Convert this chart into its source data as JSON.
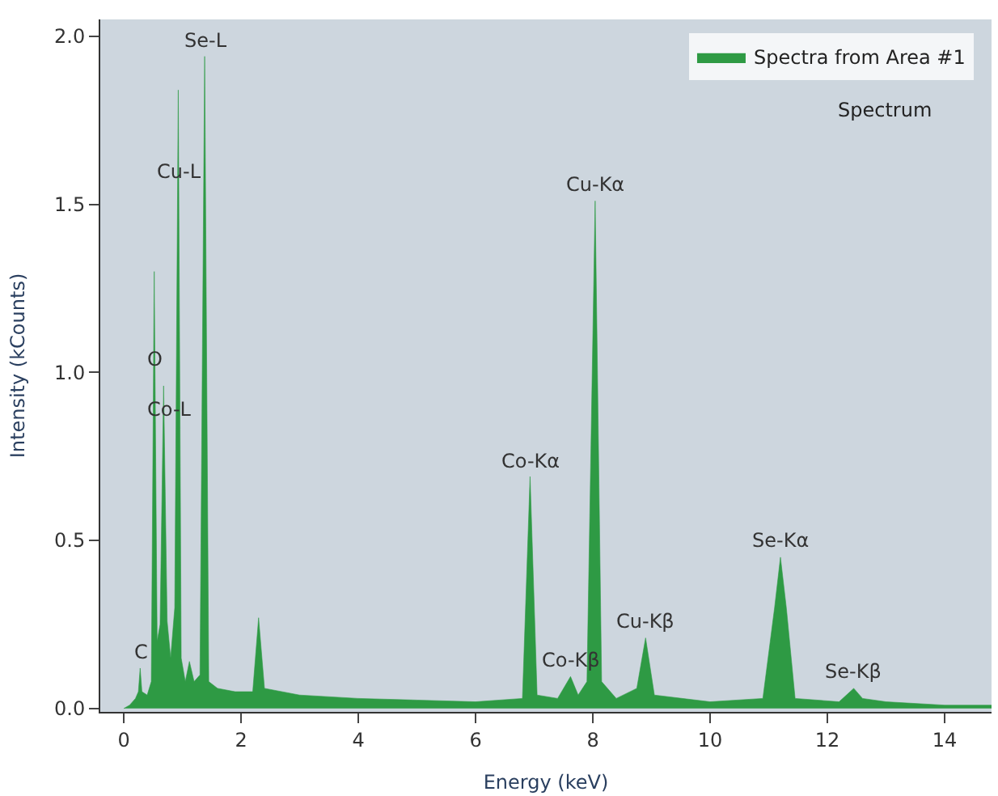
{
  "chart_data": {
    "type": "area",
    "xlabel": "Energy (keV)",
    "ylabel": "Intensity (kCounts)",
    "xlim": [
      -0.4,
      14.8
    ],
    "xticks": [
      0,
      2,
      4,
      6,
      8,
      10,
      12,
      14
    ],
    "ylim": [
      -0.01,
      2.05
    ],
    "yticks": [
      {
        "value": 0,
        "label": "0.0"
      },
      {
        "value": 0.5,
        "label": "0.5"
      },
      {
        "value": 1,
        "label": "1.0"
      },
      {
        "value": 1.5,
        "label": "1.5"
      },
      {
        "value": 2,
        "label": "2.0"
      }
    ],
    "grid": false,
    "legend": "top right",
    "marker": "none",
    "series": [
      {
        "name": "Spectra from Area #1",
        "color": "#2e9a44",
        "x": [
          0.0,
          0.1,
          0.2,
          0.25,
          0.28,
          0.31,
          0.4,
          0.47,
          0.52,
          0.57,
          0.62,
          0.68,
          0.74,
          0.8,
          0.87,
          0.93,
          0.98,
          1.05,
          1.12,
          1.2,
          1.3,
          1.38,
          1.45,
          1.6,
          1.9,
          2.2,
          2.3,
          2.4,
          3,
          4,
          5,
          6,
          6.8,
          6.93,
          7.05,
          7.4,
          7.62,
          7.75,
          7.9,
          8.04,
          8.15,
          8.4,
          8.75,
          8.9,
          9.05,
          10,
          10.9,
          11.1,
          11.2,
          11.3,
          11.45,
          12.2,
          12.45,
          12.6,
          13,
          14,
          14.8
        ],
        "values": [
          0,
          0.01,
          0.03,
          0.05,
          0.12,
          0.05,
          0.04,
          0.08,
          1.3,
          0.2,
          0.25,
          0.96,
          0.26,
          0.15,
          0.3,
          1.84,
          0.15,
          0.08,
          0.14,
          0.08,
          0.1,
          1.94,
          0.08,
          0.06,
          0.05,
          0.05,
          0.27,
          0.06,
          0.04,
          0.03,
          0.025,
          0.02,
          0.03,
          0.69,
          0.04,
          0.03,
          0.095,
          0.04,
          0.08,
          1.51,
          0.08,
          0.03,
          0.06,
          0.21,
          0.04,
          0.02,
          0.03,
          0.3,
          0.45,
          0.3,
          0.03,
          0.02,
          0.06,
          0.03,
          0.02,
          0.01,
          0.01
        ]
      }
    ],
    "annotations": [
      {
        "text": "C",
        "x": 0.28,
        "y": 0.12
      },
      {
        "text": "O",
        "x": 0.52,
        "y": 0.99
      },
      {
        "text": "Co-L",
        "x": 0.78,
        "y": 0.84
      },
      {
        "text": "Cu-L",
        "x": 0.93,
        "y": 1.55
      },
      {
        "text": "Se-L",
        "x": 1.38,
        "y": 1.94
      },
      {
        "text": "Co-Kα",
        "x": 6.93,
        "y": 0.69
      },
      {
        "text": "Co-Kβ",
        "x": 7.62,
        "y": 0.095
      },
      {
        "text": "Cu-Kα",
        "x": 8.04,
        "y": 1.51
      },
      {
        "text": "Cu-Kβ",
        "x": 8.9,
        "y": 0.21
      },
      {
        "text": "Se-Kα",
        "x": 11.2,
        "y": 0.45
      },
      {
        "text": "Se-Kβ",
        "x": 12.45,
        "y": 0.06
      },
      "Spectrum"
    ]
  }
}
